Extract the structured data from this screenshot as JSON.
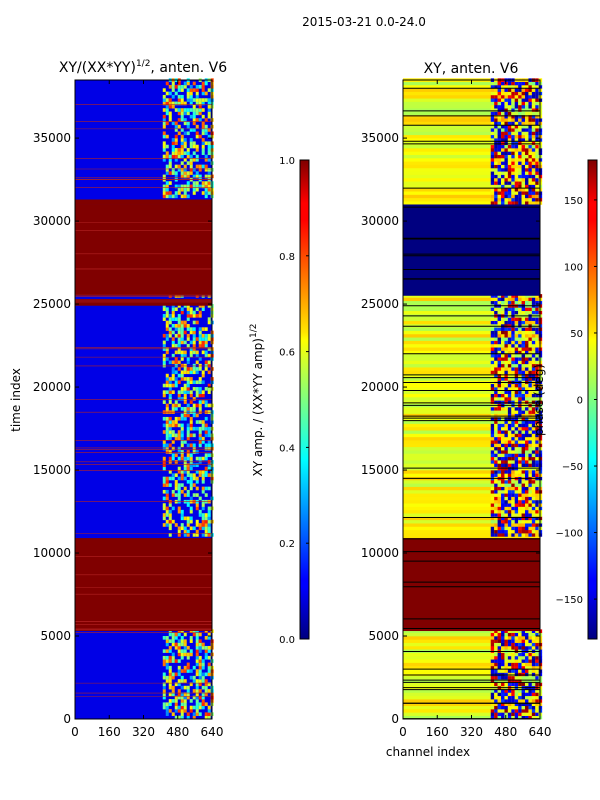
{
  "suptitle": "2015-03-21 0.0-24.0",
  "chart_data": [
    {
      "type": "heatmap",
      "title": "XY/(XX*YY)^{1/2}, anten. V6",
      "title_main": "XY/(XX*YY)",
      "title_sup": "1/2",
      "title_tail": ", anten. V6",
      "xlabel": "",
      "ylabel": "time index",
      "xlim": [
        0,
        640
      ],
      "ylim": [
        0,
        38500
      ],
      "xticks": [
        "0",
        "160",
        "320",
        "480",
        "640"
      ],
      "yticks": [
        "0",
        "5000",
        "10000",
        "15000",
        "20000",
        "25000",
        "30000",
        "35000"
      ],
      "xtick_values": [
        0,
        160,
        320,
        480,
        640
      ],
      "ytick_values": [
        0,
        5000,
        10000,
        15000,
        20000,
        25000,
        30000,
        35000
      ],
      "colorbar": {
        "label": "XY amp. / (XX*YY amp)^{1/2}",
        "label_main": "XY amp. / (XX*YY amp)",
        "label_sup": "1/2",
        "range": [
          0.0,
          1.0
        ],
        "ticks": [
          "0.0",
          "0.2",
          "0.4",
          "0.6",
          "0.8",
          "1.0"
        ],
        "tick_values": [
          0.0,
          0.2,
          0.4,
          0.6,
          0.8,
          1.0
        ],
        "colormap": "jet"
      },
      "saturated_bands": [
        {
          "from": 5300,
          "to": 10900,
          "value": 1.0
        },
        {
          "from": 25500,
          "to": 31000,
          "value": 1.0
        },
        {
          "from": 31000,
          "to": 31300,
          "value": 1.0
        },
        {
          "from": 24900,
          "to": 25300,
          "value": 1.0
        }
      ],
      "background_value": 0.1,
      "active_channels": [
        410,
        640
      ]
    },
    {
      "type": "heatmap",
      "title": "XY, anten. V6",
      "xlabel": "channel index",
      "ylabel": "",
      "xlim": [
        0,
        640
      ],
      "ylim": [
        0,
        38500
      ],
      "xticks": [
        "0",
        "160",
        "320",
        "480",
        "640"
      ],
      "yticks": [
        "0",
        "5000",
        "10000",
        "15000",
        "20000",
        "25000",
        "30000",
        "35000"
      ],
      "xtick_values": [
        0,
        160,
        320,
        480,
        640
      ],
      "ytick_values": [
        0,
        5000,
        10000,
        15000,
        20000,
        25000,
        30000,
        35000
      ],
      "colorbar": {
        "label": "phase (deg)",
        "range": [
          -180,
          180
        ],
        "ticks": [
          "−150",
          "−100",
          "−50",
          "0",
          "50",
          "100",
          "150"
        ],
        "tick_values": [
          -150,
          -100,
          -50,
          0,
          50,
          100,
          150
        ],
        "colormap": "jet"
      },
      "saturated_bands": [
        {
          "from": 5300,
          "to": 10900,
          "value": 180
        },
        {
          "from": 25500,
          "to": 31000,
          "value": -180
        }
      ],
      "background_value": 55,
      "active_channels": [
        410,
        640
      ]
    }
  ]
}
